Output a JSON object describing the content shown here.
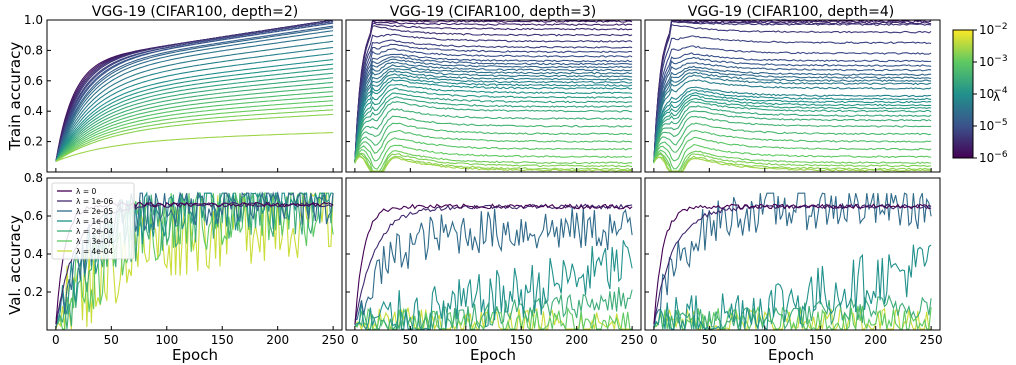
{
  "chart_data": {
    "type": "line",
    "colormap": "viridis",
    "x_ticks": [
      0,
      50,
      100,
      150,
      200,
      250
    ],
    "xlim": [
      -8,
      258
    ],
    "xlabel": "Epoch",
    "colorbar": {
      "label": "λ",
      "scale": "log",
      "range": [
        1e-06,
        0.01
      ],
      "tick_labels": [
        "10^-2",
        "10^-3",
        "10^-4",
        "10^-5",
        "10^-6"
      ]
    },
    "rows": [
      {
        "ylabel": "Train accuracy",
        "ylim": [
          0.0,
          1.0
        ],
        "y_ticks": [
          0.2,
          0.4,
          0.6,
          0.8,
          1.0
        ],
        "y_tick_labels": [
          "0.2",
          "0.4",
          "0.6",
          "0.8",
          "1.0"
        ],
        "titles": [
          "VGG-19 (CIFAR100, depth=2)",
          "VGG-19 (CIFAR100, depth=3)",
          "VGG-19 (CIFAR100, depth=4)"
        ]
      },
      {
        "ylabel": "Val. accuracy",
        "ylim": [
          0.0,
          0.8
        ],
        "y_ticks": [
          0.2,
          0.4,
          0.6,
          0.8
        ],
        "y_tick_labels": [
          "0.2",
          "0.4",
          "0.6",
          "0.8"
        ]
      }
    ],
    "legend": {
      "placement": "upper-left",
      "entries": [
        "λ = 0",
        "λ = 1e-06",
        "λ = 2e-05",
        "λ = 1e-04",
        "λ = 2e-04",
        "λ = 3e-04",
        "λ = 4e-04"
      ]
    },
    "train_panels": [
      {
        "finals": [
          1.0,
          1.0,
          1.0,
          1.0,
          1.0,
          0.99,
          0.99,
          0.98,
          0.98,
          0.96,
          0.95,
          0.93,
          0.9,
          0.86,
          0.82,
          0.78,
          0.74,
          0.71,
          0.68,
          0.65,
          0.62,
          0.59,
          0.56,
          0.53,
          0.5,
          0.47,
          0.44,
          0.41,
          0.38,
          0.26
        ],
        "start": 0.07
      },
      {
        "finals": [
          1.0,
          0.99,
          0.97,
          0.94,
          0.9,
          0.86,
          0.82,
          0.79,
          0.76,
          0.73,
          0.71,
          0.69,
          0.67,
          0.65,
          0.63,
          0.61,
          0.59,
          0.57,
          0.55,
          0.52,
          0.49,
          0.46,
          0.43,
          0.4,
          0.35,
          0.3,
          0.25,
          0.2,
          0.15,
          0.1,
          0.06,
          0.04,
          0.02,
          0.01
        ],
        "start": 0.07
      },
      {
        "finals": [
          1.0,
          1.0,
          0.99,
          0.98,
          0.97,
          0.92,
          0.85,
          0.78,
          0.73,
          0.7,
          0.67,
          0.64,
          0.62,
          0.6,
          0.58,
          0.55,
          0.5,
          0.48,
          0.46,
          0.44,
          0.42,
          0.4,
          0.37,
          0.34,
          0.3,
          0.25,
          0.2,
          0.15,
          0.1,
          0.06,
          0.04,
          0.02,
          0.01
        ],
        "start": 0.07
      }
    ],
    "val_panels": [
      {
        "series": [
          {
            "legend_index": 0,
            "final": 0.66
          },
          {
            "legend_index": 1,
            "final": 0.66
          },
          {
            "legend_index": 2,
            "final": 0.67
          },
          {
            "legend_index": 3,
            "final": 0.68
          },
          {
            "legend_index": 4,
            "final": 0.68
          },
          {
            "legend_index": 5,
            "final": 0.66
          },
          {
            "legend_index": 6,
            "final": 0.63
          }
        ]
      },
      {
        "series": [
          {
            "legend_index": 0,
            "final": 0.65
          },
          {
            "legend_index": 1,
            "final": 0.65
          },
          {
            "legend_index": 2,
            "final": 0.53
          },
          {
            "legend_index": 3,
            "final": 0.36
          },
          {
            "legend_index": 4,
            "final": 0.17
          },
          {
            "legend_index": 5,
            "final": 0.03
          },
          {
            "legend_index": 6,
            "final": 0.01
          }
        ]
      },
      {
        "series": [
          {
            "legend_index": 0,
            "final": 0.65
          },
          {
            "legend_index": 1,
            "final": 0.65
          },
          {
            "legend_index": 2,
            "final": 0.65
          },
          {
            "legend_index": 3,
            "final": 0.35
          },
          {
            "legend_index": 4,
            "final": 0.14
          },
          {
            "legend_index": 5,
            "final": 0.05
          },
          {
            "legend_index": 6,
            "final": 0.02
          }
        ]
      }
    ]
  }
}
